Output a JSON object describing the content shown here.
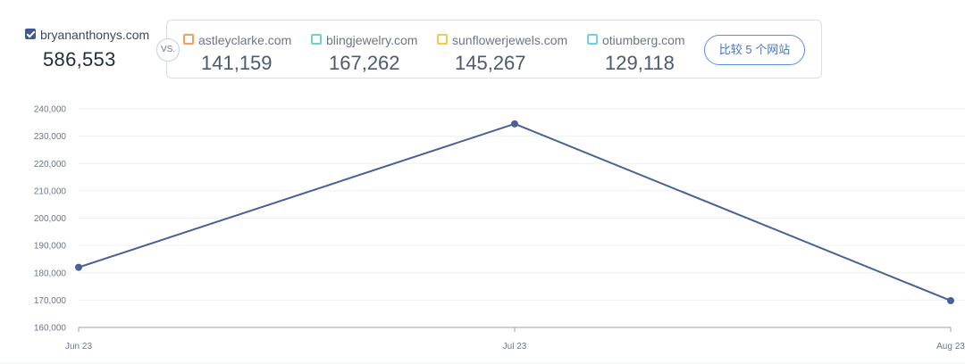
{
  "primary_site": {
    "domain": "bryananthonys.com",
    "value": "586,553",
    "checked": true,
    "color": "#3e5a8f"
  },
  "vs_label": "VS.",
  "competitors": [
    {
      "domain": "astleyclarke.com",
      "value": "141,159",
      "color": "#f5a05a"
    },
    {
      "domain": "blingjewelry.com",
      "value": "167,262",
      "color": "#6fd3c0"
    },
    {
      "domain": "sunflowerjewels.com",
      "value": "145,267",
      "color": "#f7c948"
    },
    {
      "domain": "otiumberg.com",
      "value": "129,118",
      "color": "#6ad4dc"
    }
  ],
  "compare_button": "比较 5 个网站",
  "chart_data": {
    "type": "line",
    "x": [
      "Jun 23",
      "Jul 23",
      "Aug 23"
    ],
    "series": [
      {
        "values": [
          182000,
          234500,
          169800
        ],
        "color": "#4a6196"
      }
    ],
    "y_ticks": [
      "160,000",
      "170,000",
      "180,000",
      "190,000",
      "200,000",
      "210,000",
      "220,000",
      "230,000",
      "240,000"
    ],
    "ylim": [
      160000,
      240000
    ],
    "grid": true
  }
}
